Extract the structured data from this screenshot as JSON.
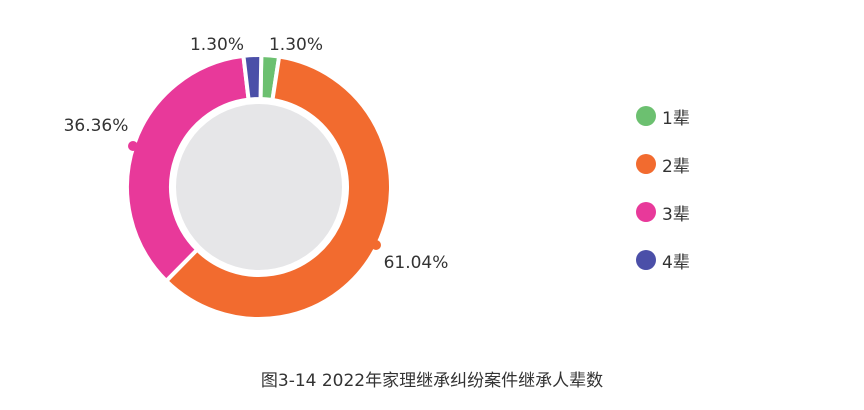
{
  "chart_data": {
    "type": "pie",
    "variant": "donut",
    "title": "图3-14  2022年家理继承纠纷案件继承人辈数",
    "categories": [
      "1辈",
      "2辈",
      "3辈",
      "4辈"
    ],
    "values": [
      1.3,
      61.04,
      36.36,
      1.3
    ],
    "value_labels": [
      "1.30%",
      "61.04%",
      "36.36%",
      "1.30%"
    ],
    "colors": [
      "#6cc070",
      "#f26b2f",
      "#e8399a",
      "#4b4fa8"
    ],
    "center_color": "#e6e6e8",
    "legend_position": "right"
  }
}
